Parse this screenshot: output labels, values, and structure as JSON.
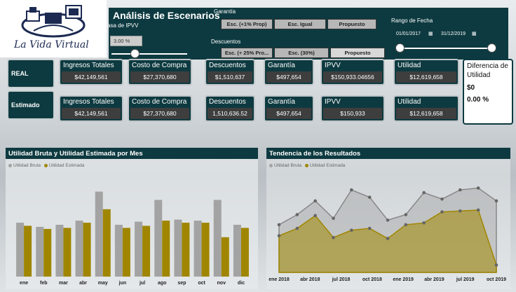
{
  "brand": {
    "name": "La Vida Virtual"
  },
  "header": {
    "title": "Análisis de Escenarios",
    "ipvv_label": "asa de IPVV",
    "ipvv_value": "3.00 %"
  },
  "garantia": {
    "label": "Garantía",
    "options": [
      "Esc. (+1% Prop)",
      "Esc. Igual",
      "Propuesto"
    ]
  },
  "descuentos": {
    "label": "Descuentos",
    "options": [
      "Esc. (+ 25% Pro...",
      "Esc. (30%)",
      "Propuesto"
    ]
  },
  "date_range": {
    "label": "Rango de Fecha",
    "start": "01/01/2017",
    "end": "31/12/2019"
  },
  "rows": [
    {
      "label": "REAL",
      "kpis": [
        {
          "label": "Ingresos Totales",
          "value": "$42,149,561"
        },
        {
          "label": "Costo de Compra",
          "value": "$27,370,680"
        },
        {
          "label": "Descuentos",
          "value": "$1,510,637"
        },
        {
          "label": "Garantía",
          "value": "$497,654"
        },
        {
          "label": "IPVV",
          "value": "$150,933.04656"
        },
        {
          "label": "Utilidad",
          "value": "$12,619,658"
        }
      ]
    },
    {
      "label": "Estimado",
      "kpis": [
        {
          "label": "Ingresos Totales",
          "value": "$42,149,561"
        },
        {
          "label": "Costo de Compra",
          "value": "$27,370,680"
        },
        {
          "label": "Descuentos",
          "value": "1,510,636.52"
        },
        {
          "label": "Garantía",
          "value": "$497,654"
        },
        {
          "label": "IPVV",
          "value": "$150,933"
        },
        {
          "label": "Utilidad",
          "value": "$12,619,658"
        }
      ]
    }
  ],
  "difference": {
    "label": "Diferencia de Utilidad",
    "value": "$0",
    "percent": "0.00 %"
  },
  "colors": {
    "dark": "#0d3a40",
    "gray": "#a3a3a3",
    "gold": "#a08600"
  },
  "chart_data": [
    {
      "type": "bar",
      "title": "Utilidad Bruta y Utilidad Estimada por Mes",
      "categories": [
        "ene",
        "feb",
        "mar",
        "abr",
        "may",
        "jun",
        "jul",
        "ago",
        "sep",
        "oct",
        "nov",
        "dic"
      ],
      "series": [
        {
          "name": "Utilidad Bruta",
          "color": "#a3a3a3",
          "values": [
            52,
            48,
            50,
            54,
            82,
            50,
            53,
            74,
            55,
            54,
            74,
            50
          ]
        },
        {
          "name": "Utilidad Estimada",
          "color": "#a08600",
          "values": [
            49,
            46,
            47,
            52,
            65,
            47,
            49,
            54,
            52,
            52,
            38,
            47
          ]
        }
      ],
      "ylim": [
        0,
        100
      ]
    },
    {
      "type": "area",
      "title": "Tendencia de los Resultados",
      "categories": [
        "ene 2018",
        "abr 2018",
        "jul 2018",
        "oct 2018",
        "ene 2019",
        "abr 2019",
        "jul 2019",
        "oct 2019"
      ],
      "x": [
        0,
        1,
        2,
        3,
        4,
        5,
        6,
        7,
        8,
        9,
        10,
        11,
        12
      ],
      "series": [
        {
          "name": "Utilidad Bruta",
          "color": "#a3a3a3",
          "values": [
            52,
            63,
            78,
            59,
            90,
            82,
            57,
            63,
            87,
            80,
            90,
            92,
            78
          ]
        },
        {
          "name": "Utilidad Estimada",
          "color": "#a08600",
          "values": [
            40,
            48,
            62,
            38,
            46,
            48,
            37,
            52,
            54,
            66,
            67,
            68,
            8
          ]
        }
      ],
      "ylim": [
        0,
        110
      ]
    }
  ]
}
